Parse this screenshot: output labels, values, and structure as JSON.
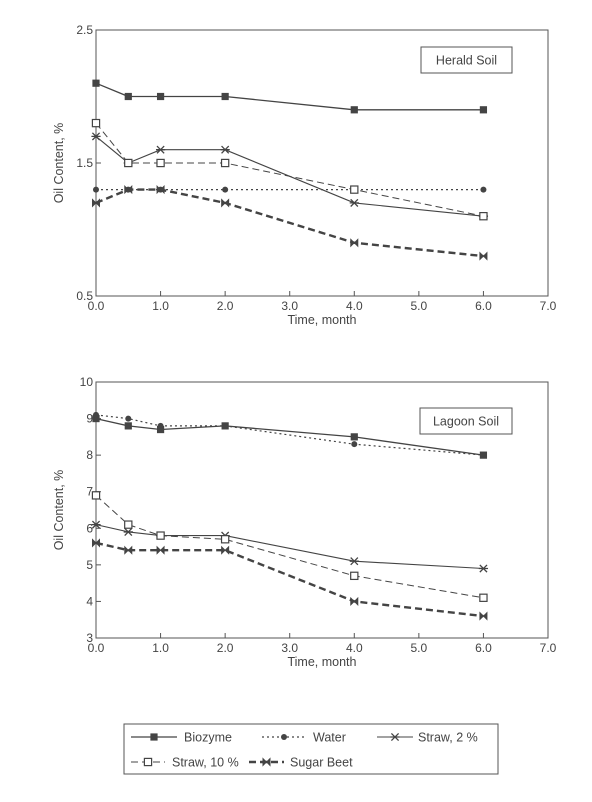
{
  "chart_data": [
    {
      "type": "line",
      "title": "Herald Soil",
      "xlabel": "Time, month",
      "ylabel": "Oil Content, %",
      "xlim": [
        0,
        7
      ],
      "ylim": [
        0.5,
        2.5
      ],
      "xticks": [
        "0.0",
        "1.0",
        "2.0",
        "3.0",
        "4.0",
        "5.0",
        "6.0",
        "7.0"
      ],
      "yticks": [
        "0.5",
        "1.5",
        "2.5"
      ],
      "ytick_values": [
        0.5,
        1.5,
        2.5
      ],
      "grid": false,
      "series": [
        {
          "name": "Biozyme",
          "x": [
            0,
            0.5,
            1,
            2,
            4,
            6
          ],
          "y": [
            2.1,
            2.0,
            2.0,
            2.0,
            1.9,
            1.9
          ],
          "marker": "filled-square",
          "dash": "",
          "width": 1.3,
          "color": "#444444"
        },
        {
          "name": "Water",
          "x": [
            0,
            0.5,
            1,
            2,
            4,
            6
          ],
          "y": [
            1.3,
            1.3,
            1.3,
            1.3,
            1.3,
            1.3
          ],
          "marker": "filled-circle",
          "dash": "2,3",
          "width": 1.2,
          "color": "#444444"
        },
        {
          "name": "Straw, 2 %",
          "x": [
            0,
            0.5,
            1,
            2,
            4,
            6
          ],
          "y": [
            1.7,
            1.5,
            1.6,
            1.6,
            1.2,
            1.1
          ],
          "marker": "star",
          "dash": "",
          "width": 1.1,
          "color": "#444444"
        },
        {
          "name": "Straw, 10 %",
          "x": [
            0,
            0.5,
            1,
            2,
            4,
            6
          ],
          "y": [
            1.8,
            1.5,
            1.5,
            1.5,
            1.3,
            1.1
          ],
          "marker": "open-square",
          "dash": "7,4",
          "width": 1.0,
          "color": "#444444"
        },
        {
          "name": "Sugar Beet",
          "x": [
            0,
            0.5,
            1,
            2,
            4,
            6
          ],
          "y": [
            1.2,
            1.3,
            1.3,
            1.2,
            0.9,
            0.8
          ],
          "marker": "bowtie",
          "dash": "7,4",
          "width": 2.4,
          "color": "#444444"
        }
      ]
    },
    {
      "type": "line",
      "title": "Lagoon Soil",
      "xlabel": "Time, month",
      "ylabel": "Oil Content, %",
      "xlim": [
        0,
        7
      ],
      "ylim": [
        3,
        10
      ],
      "xticks": [
        "0.0",
        "1.0",
        "2.0",
        "3.0",
        "4.0",
        "5.0",
        "6.0",
        "7.0"
      ],
      "yticks": [
        "3",
        "4",
        "5",
        "6",
        "7",
        "8",
        "9",
        "10"
      ],
      "ytick_values": [
        3,
        4,
        5,
        6,
        7,
        8,
        9,
        10
      ],
      "grid": false,
      "series": [
        {
          "name": "Biozyme",
          "x": [
            0,
            0.5,
            1,
            2,
            4,
            6
          ],
          "y": [
            9.0,
            8.8,
            8.7,
            8.8,
            8.5,
            8.0
          ],
          "marker": "filled-square",
          "dash": "",
          "width": 1.3,
          "color": "#444444"
        },
        {
          "name": "Water",
          "x": [
            0,
            0.5,
            1,
            2,
            4,
            6
          ],
          "y": [
            9.1,
            9.0,
            8.8,
            8.8,
            8.3,
            8.0
          ],
          "marker": "filled-circle",
          "dash": "2,3",
          "width": 1.2,
          "color": "#444444"
        },
        {
          "name": "Straw, 2 %",
          "x": [
            0,
            0.5,
            1,
            2,
            4,
            6
          ],
          "y": [
            6.1,
            5.9,
            5.8,
            5.8,
            5.1,
            4.9
          ],
          "marker": "star",
          "dash": "",
          "width": 1.1,
          "color": "#444444"
        },
        {
          "name": "Straw, 10 %",
          "x": [
            0,
            0.5,
            1,
            2,
            4,
            6
          ],
          "y": [
            6.9,
            6.1,
            5.8,
            5.7,
            4.7,
            4.1
          ],
          "marker": "open-square",
          "dash": "7,4",
          "width": 1.0,
          "color": "#444444"
        },
        {
          "name": "Sugar Beet",
          "x": [
            0,
            0.5,
            1,
            2,
            4,
            6
          ],
          "y": [
            5.6,
            5.4,
            5.4,
            5.4,
            4.0,
            3.6
          ],
          "marker": "bowtie",
          "dash": "7,4",
          "width": 2.4,
          "color": "#444444"
        }
      ]
    }
  ],
  "legend": {
    "placement": "bottom",
    "items": [
      "Biozyme",
      "Water",
      "Straw, 2 %",
      "Straw, 10 %",
      "Sugar Beet"
    ]
  }
}
